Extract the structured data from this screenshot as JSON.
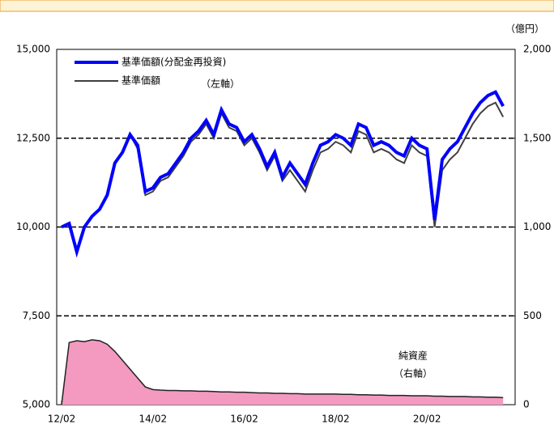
{
  "chart_data": {
    "type": "line",
    "categories": [
      "12/02",
      null,
      null,
      null,
      null,
      null,
      null,
      null,
      null,
      null,
      null,
      null,
      "14/02",
      null,
      null,
      null,
      null,
      null,
      null,
      null,
      null,
      null,
      null,
      null,
      "16/02",
      null,
      null,
      null,
      null,
      null,
      null,
      null,
      null,
      null,
      null,
      null,
      "18/02",
      null,
      null,
      null,
      null,
      null,
      null,
      null,
      null,
      null,
      null,
      null,
      "20/02",
      null,
      null,
      null,
      null,
      null,
      null,
      null,
      null,
      null,
      null
    ],
    "series": [
      {
        "name": "基準価額(分配金再投資)",
        "color": "#0000ff",
        "values": [
          10000,
          10100,
          9300,
          10000,
          10300,
          10500,
          10900,
          11800,
          12100,
          12600,
          12300,
          11000,
          11100,
          11400,
          11500,
          11800,
          12100,
          12500,
          12700,
          13000,
          12600,
          13300,
          12900,
          12800,
          12400,
          12600,
          12200,
          11700,
          12100,
          11400,
          11800,
          11500,
          11200,
          11800,
          12300,
          12400,
          12600,
          12500,
          12300,
          12900,
          12800,
          12300,
          12400,
          12300,
          12100,
          12000,
          12500,
          12300,
          12200,
          10200,
          11900,
          12200,
          12400,
          12800,
          13200,
          13500,
          13700,
          13800,
          13400
        ]
      },
      {
        "name": "基準価額",
        "color": "#404040",
        "values": [
          10000,
          10100,
          9300,
          10000,
          10300,
          10500,
          10900,
          11800,
          12100,
          12600,
          12200,
          10900,
          11000,
          11300,
          11400,
          11700,
          12000,
          12400,
          12600,
          12900,
          12500,
          13200,
          12800,
          12700,
          12300,
          12500,
          12100,
          11600,
          12000,
          11300,
          11600,
          11300,
          11000,
          11600,
          12100,
          12200,
          12400,
          12300,
          12100,
          12700,
          12600,
          12100,
          12200,
          12100,
          11900,
          11800,
          12300,
          12100,
          12000,
          10000,
          11600,
          11900,
          12100,
          12500,
          12900,
          13200,
          13400,
          13500,
          13100
        ]
      },
      {
        "name": "純資産",
        "type": "area",
        "axis": "y2",
        "color": "#f49ac1",
        "values": [
          0,
          350,
          360,
          355,
          365,
          360,
          340,
          300,
          250,
          200,
          150,
          100,
          85,
          82,
          80,
          80,
          78,
          78,
          76,
          76,
          74,
          72,
          72,
          70,
          70,
          68,
          66,
          66,
          64,
          64,
          62,
          62,
          60,
          60,
          60,
          60,
          60,
          58,
          58,
          56,
          56,
          54,
          54,
          52,
          52,
          52,
          50,
          50,
          50,
          48,
          48,
          46,
          46,
          46,
          44,
          44,
          42,
          42,
          40
        ]
      }
    ],
    "ylim": [
      5000,
      15000
    ],
    "yticks": [
      {
        "value": 5000,
        "label": "5,000"
      },
      {
        "value": 7500,
        "label": "7,500"
      },
      {
        "value": 10000,
        "label": "10,000"
      },
      {
        "value": 12500,
        "label": "12,500"
      },
      {
        "value": 15000,
        "label": "15,000"
      }
    ],
    "y2lim": [
      0,
      2000
    ],
    "y2ticks": [
      0,
      500,
      {
        "value": 1000,
        "label": "1,000"
      },
      {
        "value": 1500,
        "label": "1,500"
      },
      {
        "value": 2000,
        "label": "2,000"
      }
    ],
    "y2_label": "（億円）",
    "grid": true,
    "legend": "upper left",
    "legend_note": "（左軸）",
    "annotation": [
      "純資産",
      "（右軸）"
    ]
  }
}
